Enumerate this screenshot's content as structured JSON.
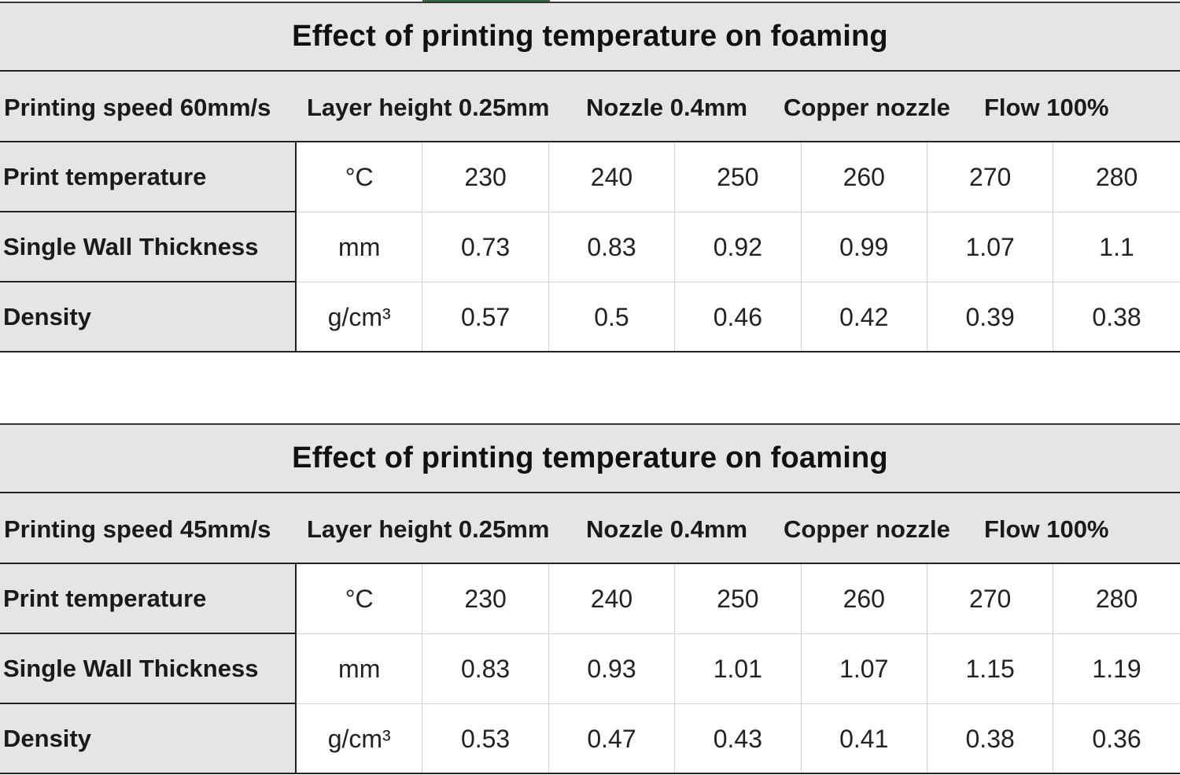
{
  "tables": [
    {
      "title": "Effect of printing temperature on foaming",
      "params": [
        "Printing speed 60mm/s",
        "Layer height 0.25mm",
        "Nozzle 0.4mm",
        "Copper nozzle",
        "Flow 100%"
      ],
      "rows": [
        {
          "label": "Print temperature",
          "unit": "°C",
          "values": [
            "230",
            "240",
            "250",
            "260",
            "270",
            "280"
          ]
        },
        {
          "label": "Single Wall Thickness",
          "unit": "mm",
          "values": [
            "0.73",
            "0.83",
            "0.92",
            "0.99",
            "1.07",
            "1.1"
          ]
        },
        {
          "label": "Density",
          "unit": "g/cm³",
          "values": [
            "0.57",
            "0.5",
            "0.46",
            "0.42",
            "0.39",
            "0.38"
          ]
        }
      ]
    },
    {
      "title": "Effect of printing temperature on foaming",
      "params": [
        "Printing speed 45mm/s",
        "Layer height 0.25mm",
        "Nozzle 0.4mm",
        "Copper nozzle",
        "Flow 100%"
      ],
      "rows": [
        {
          "label": "Print temperature",
          "unit": "°C",
          "values": [
            "230",
            "240",
            "250",
            "260",
            "270",
            "280"
          ]
        },
        {
          "label": "Single Wall Thickness",
          "unit": "mm",
          "values": [
            "0.83",
            "0.93",
            "1.01",
            "1.07",
            "1.15",
            "1.19"
          ]
        },
        {
          "label": "Density",
          "unit": "g/cm³",
          "values": [
            "0.53",
            "0.47",
            "0.43",
            "0.41",
            "0.38",
            "0.36"
          ]
        }
      ]
    }
  ]
}
